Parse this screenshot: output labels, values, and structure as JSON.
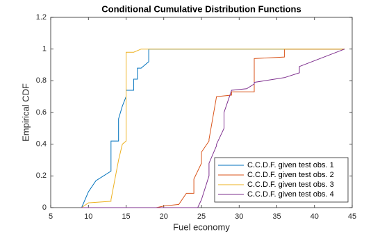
{
  "chart_data": {
    "type": "line",
    "title": "Conditional Cumulative Distribution Functions",
    "xlabel": "Fuel economy",
    "ylabel": "Empirical CDF",
    "xlim": [
      5,
      45
    ],
    "xticks": [
      5,
      10,
      15,
      20,
      25,
      30,
      35,
      40,
      45
    ],
    "ylim": [
      0,
      1.2
    ],
    "yticks": [
      0,
      0.2,
      0.4,
      0.6,
      0.8,
      1,
      1.2
    ],
    "legend_position": "lower right",
    "series": [
      {
        "name": "C.C.D.F. given test obs. 1",
        "color": "#0072BD",
        "x": [
          9.1,
          10,
          11,
          13,
          13,
          14,
          14,
          14.5,
          15,
          15,
          16,
          16,
          16.5,
          16.5,
          17,
          17.5,
          18,
          18,
          44
        ],
        "values": [
          0,
          0.1,
          0.17,
          0.23,
          0.42,
          0.42,
          0.56,
          0.64,
          0.7,
          0.74,
          0.74,
          0.81,
          0.81,
          0.88,
          0.88,
          0.9,
          0.92,
          1,
          1
        ]
      },
      {
        "name": "C.C.D.F. given test obs. 2",
        "color": "#D95319",
        "x": [
          19,
          20,
          22,
          23,
          24,
          24,
          25,
          25,
          26,
          26,
          27,
          29,
          29,
          32,
          32,
          36,
          36,
          44
        ],
        "values": [
          0,
          0.01,
          0.02,
          0.09,
          0.09,
          0.18,
          0.28,
          0.35,
          0.42,
          0.43,
          0.7,
          0.71,
          0.73,
          0.73,
          0.94,
          0.95,
          1,
          1
        ]
      },
      {
        "name": "C.C.D.F. given test obs. 3",
        "color": "#EDB120",
        "x": [
          9.1,
          10,
          13,
          13,
          14,
          14.5,
          15,
          15,
          16,
          16.5,
          17,
          44
        ],
        "values": [
          0,
          0.03,
          0.04,
          0.05,
          0.3,
          0.4,
          0.42,
          0.98,
          0.98,
          0.99,
          1,
          1
        ]
      },
      {
        "name": "C.C.D.F. given test obs. 4",
        "color": "#7E2F8E",
        "x": [
          9,
          24.5,
          25,
          26,
          26,
          27,
          27,
          28,
          28,
          29,
          31,
          32,
          32,
          36,
          38,
          38,
          44
        ],
        "values": [
          0,
          0,
          0.05,
          0.2,
          0.28,
          0.39,
          0.4,
          0.5,
          0.6,
          0.74,
          0.75,
          0.78,
          0.79,
          0.82,
          0.85,
          0.89,
          1
        ]
      }
    ]
  }
}
